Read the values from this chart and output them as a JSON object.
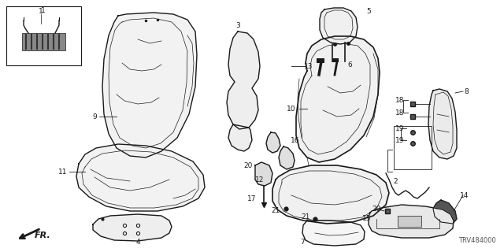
{
  "diagram_code": "TRV484000",
  "bg_color": "#ffffff",
  "line_color": "#1a1a1a",
  "figsize": [
    6.4,
    3.2
  ],
  "dpi": 100
}
